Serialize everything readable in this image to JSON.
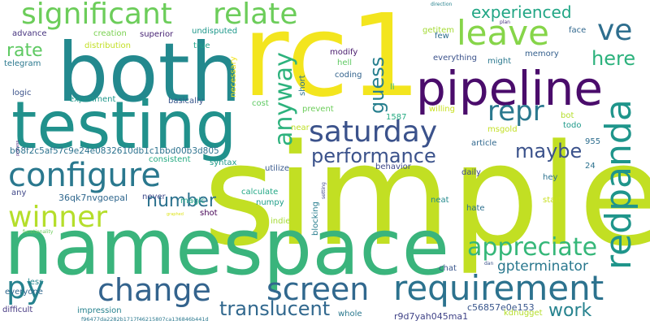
{
  "words": [
    {
      "text": "simple",
      "color": "#c2df23"
    },
    {
      "text": "namespace",
      "color": "#3ab47c"
    },
    {
      "text": "rc1",
      "color": "#f3e51e"
    },
    {
      "text": "both",
      "color": "#23898e"
    },
    {
      "text": "testing",
      "color": "#21918c"
    },
    {
      "text": "pipeline",
      "color": "#4a0c6b"
    },
    {
      "text": "significant",
      "color": "#6ccd5a"
    },
    {
      "text": "relate",
      "color": "#6ccd5a"
    },
    {
      "text": "requirement",
      "color": "#2c728e"
    },
    {
      "text": "configure",
      "color": "#2a788e"
    },
    {
      "text": "leave",
      "color": "#86d549"
    },
    {
      "text": "saturday",
      "color": "#3b528b"
    },
    {
      "text": "winner",
      "color": "#b5de2b"
    },
    {
      "text": "screen",
      "color": "#31688e"
    },
    {
      "text": "change",
      "color": "#33638d"
    },
    {
      "text": "redpanda",
      "color": "#1f958b"
    },
    {
      "text": "appreciate",
      "color": "#35b779"
    },
    {
      "text": "repr",
      "color": "#2a788e"
    },
    {
      "text": "py",
      "color": "#26828e"
    },
    {
      "text": "performance",
      "color": "#3b528b"
    },
    {
      "text": "translucent",
      "color": "#31688e"
    },
    {
      "text": "ve",
      "color": "#2e6e8e"
    },
    {
      "text": "anyway",
      "color": "#2db27d"
    },
    {
      "text": "maybe",
      "color": "#3b528b"
    },
    {
      "text": "guess",
      "color": "#277f8e"
    },
    {
      "text": "here",
      "color": "#2db27d"
    },
    {
      "text": "rate",
      "color": "#5ec962"
    },
    {
      "text": "experienced",
      "color": "#21a685"
    },
    {
      "text": "number",
      "color": "#2c728e"
    },
    {
      "text": "work",
      "color": "#26828e"
    },
    {
      "text": "gpterminator",
      "color": "#2a788e"
    },
    {
      "text": "b68f2c5af57c9e24e0832610db1c1bbd00b3d805",
      "color": "#2c728e"
    },
    {
      "text": "36qk7nvgoepal",
      "color": "#31688e"
    },
    {
      "text": "r9d7yah045ma1",
      "color": "#404387"
    },
    {
      "text": "c56857e0e153",
      "color": "#39568c"
    },
    {
      "text": "f96477da2282b1717f46215807ca136846b441d",
      "color": "#2a788e"
    },
    {
      "text": "kdnugget",
      "color": "#b5de2b"
    },
    {
      "text": "advance",
      "color": "#46337f"
    },
    {
      "text": "creation",
      "color": "#7ad151"
    },
    {
      "text": "superior",
      "color": "#482475"
    },
    {
      "text": "undisputed",
      "color": "#1f988b"
    },
    {
      "text": "distribution",
      "color": "#c2df23"
    },
    {
      "text": "true",
      "color": "#1fa088"
    },
    {
      "text": "necessary",
      "color": "#f3e51e"
    },
    {
      "text": "telegram",
      "color": "#2a788e"
    },
    {
      "text": "logic",
      "color": "#3b528b"
    },
    {
      "text": "experiment",
      "color": "#1f988b"
    },
    {
      "text": "basically",
      "color": "#39568c"
    },
    {
      "text": "short",
      "color": "#2c728e"
    },
    {
      "text": "cost",
      "color": "#5ec962"
    },
    {
      "text": "prevent",
      "color": "#6ccd5a"
    },
    {
      "text": "near",
      "color": "#bddf26"
    },
    {
      "text": "modify",
      "color": "#481b6d"
    },
    {
      "text": "hell",
      "color": "#5ec962"
    },
    {
      "text": "coding",
      "color": "#33638d"
    },
    {
      "text": "getitem",
      "color": "#a5db36"
    },
    {
      "text": "ll",
      "color": "#35b779"
    },
    {
      "text": "1587",
      "color": "#25ab82"
    },
    {
      "text": "willing",
      "color": "#c8e020"
    },
    {
      "text": "bot",
      "color": "#b5de2b"
    },
    {
      "text": "todo",
      "color": "#1f9a8a"
    },
    {
      "text": "msgold",
      "color": "#c2df23"
    },
    {
      "text": "article",
      "color": "#31688e"
    },
    {
      "text": "955",
      "color": "#2e6e8e"
    },
    {
      "text": "24",
      "color": "#2c728e"
    },
    {
      "text": "hey",
      "color": "#2c728e"
    },
    {
      "text": "start",
      "color": "#c8e020"
    },
    {
      "text": "daily",
      "color": "#3e4a89"
    },
    {
      "text": "behavior",
      "color": "#3f4889"
    },
    {
      "text": "utilize",
      "color": "#38598c"
    },
    {
      "text": "syntax",
      "color": "#1e9b8a"
    },
    {
      "text": "consistent",
      "color": "#25ab82"
    },
    {
      "text": "calculate",
      "color": "#22a785"
    },
    {
      "text": "numpy",
      "color": "#1f9e89"
    },
    {
      "text": "magic",
      "color": "#20a386"
    },
    {
      "text": "never",
      "color": "#3e4a89"
    },
    {
      "text": "shot",
      "color": "#440154"
    },
    {
      "text": "indie",
      "color": "#a5db36"
    },
    {
      "text": "blocking",
      "color": "#287d8e"
    },
    {
      "text": "setting",
      "color": "#3f4788"
    },
    {
      "text": "neat",
      "color": "#238a8d"
    },
    {
      "text": "hate",
      "color": "#2d708e"
    },
    {
      "text": "chat",
      "color": "#39568c"
    },
    {
      "text": "dan",
      "color": "#3b528b"
    },
    {
      "text": "any",
      "color": "#3f4788"
    },
    {
      "text": "less",
      "color": "#24868e"
    },
    {
      "text": "everyone",
      "color": "#31688e"
    },
    {
      "text": "difficult",
      "color": "#453781"
    },
    {
      "text": "impression",
      "color": "#26828e"
    },
    {
      "text": "whole",
      "color": "#2a788e"
    },
    {
      "text": "functionality",
      "color": "#6ccd5a"
    },
    {
      "text": "process",
      "color": "#482878"
    },
    {
      "text": "graphed",
      "color": "#dde318"
    },
    {
      "text": "direction",
      "color": "#26828e"
    },
    {
      "text": "plan",
      "color": "#46327e"
    },
    {
      "text": "few",
      "color": "#2e6e8e"
    },
    {
      "text": "face",
      "color": "#31688e"
    },
    {
      "text": "everything",
      "color": "#3b528b"
    },
    {
      "text": "memory",
      "color": "#35608d"
    },
    {
      "text": "might",
      "color": "#2a788e"
    }
  ]
}
